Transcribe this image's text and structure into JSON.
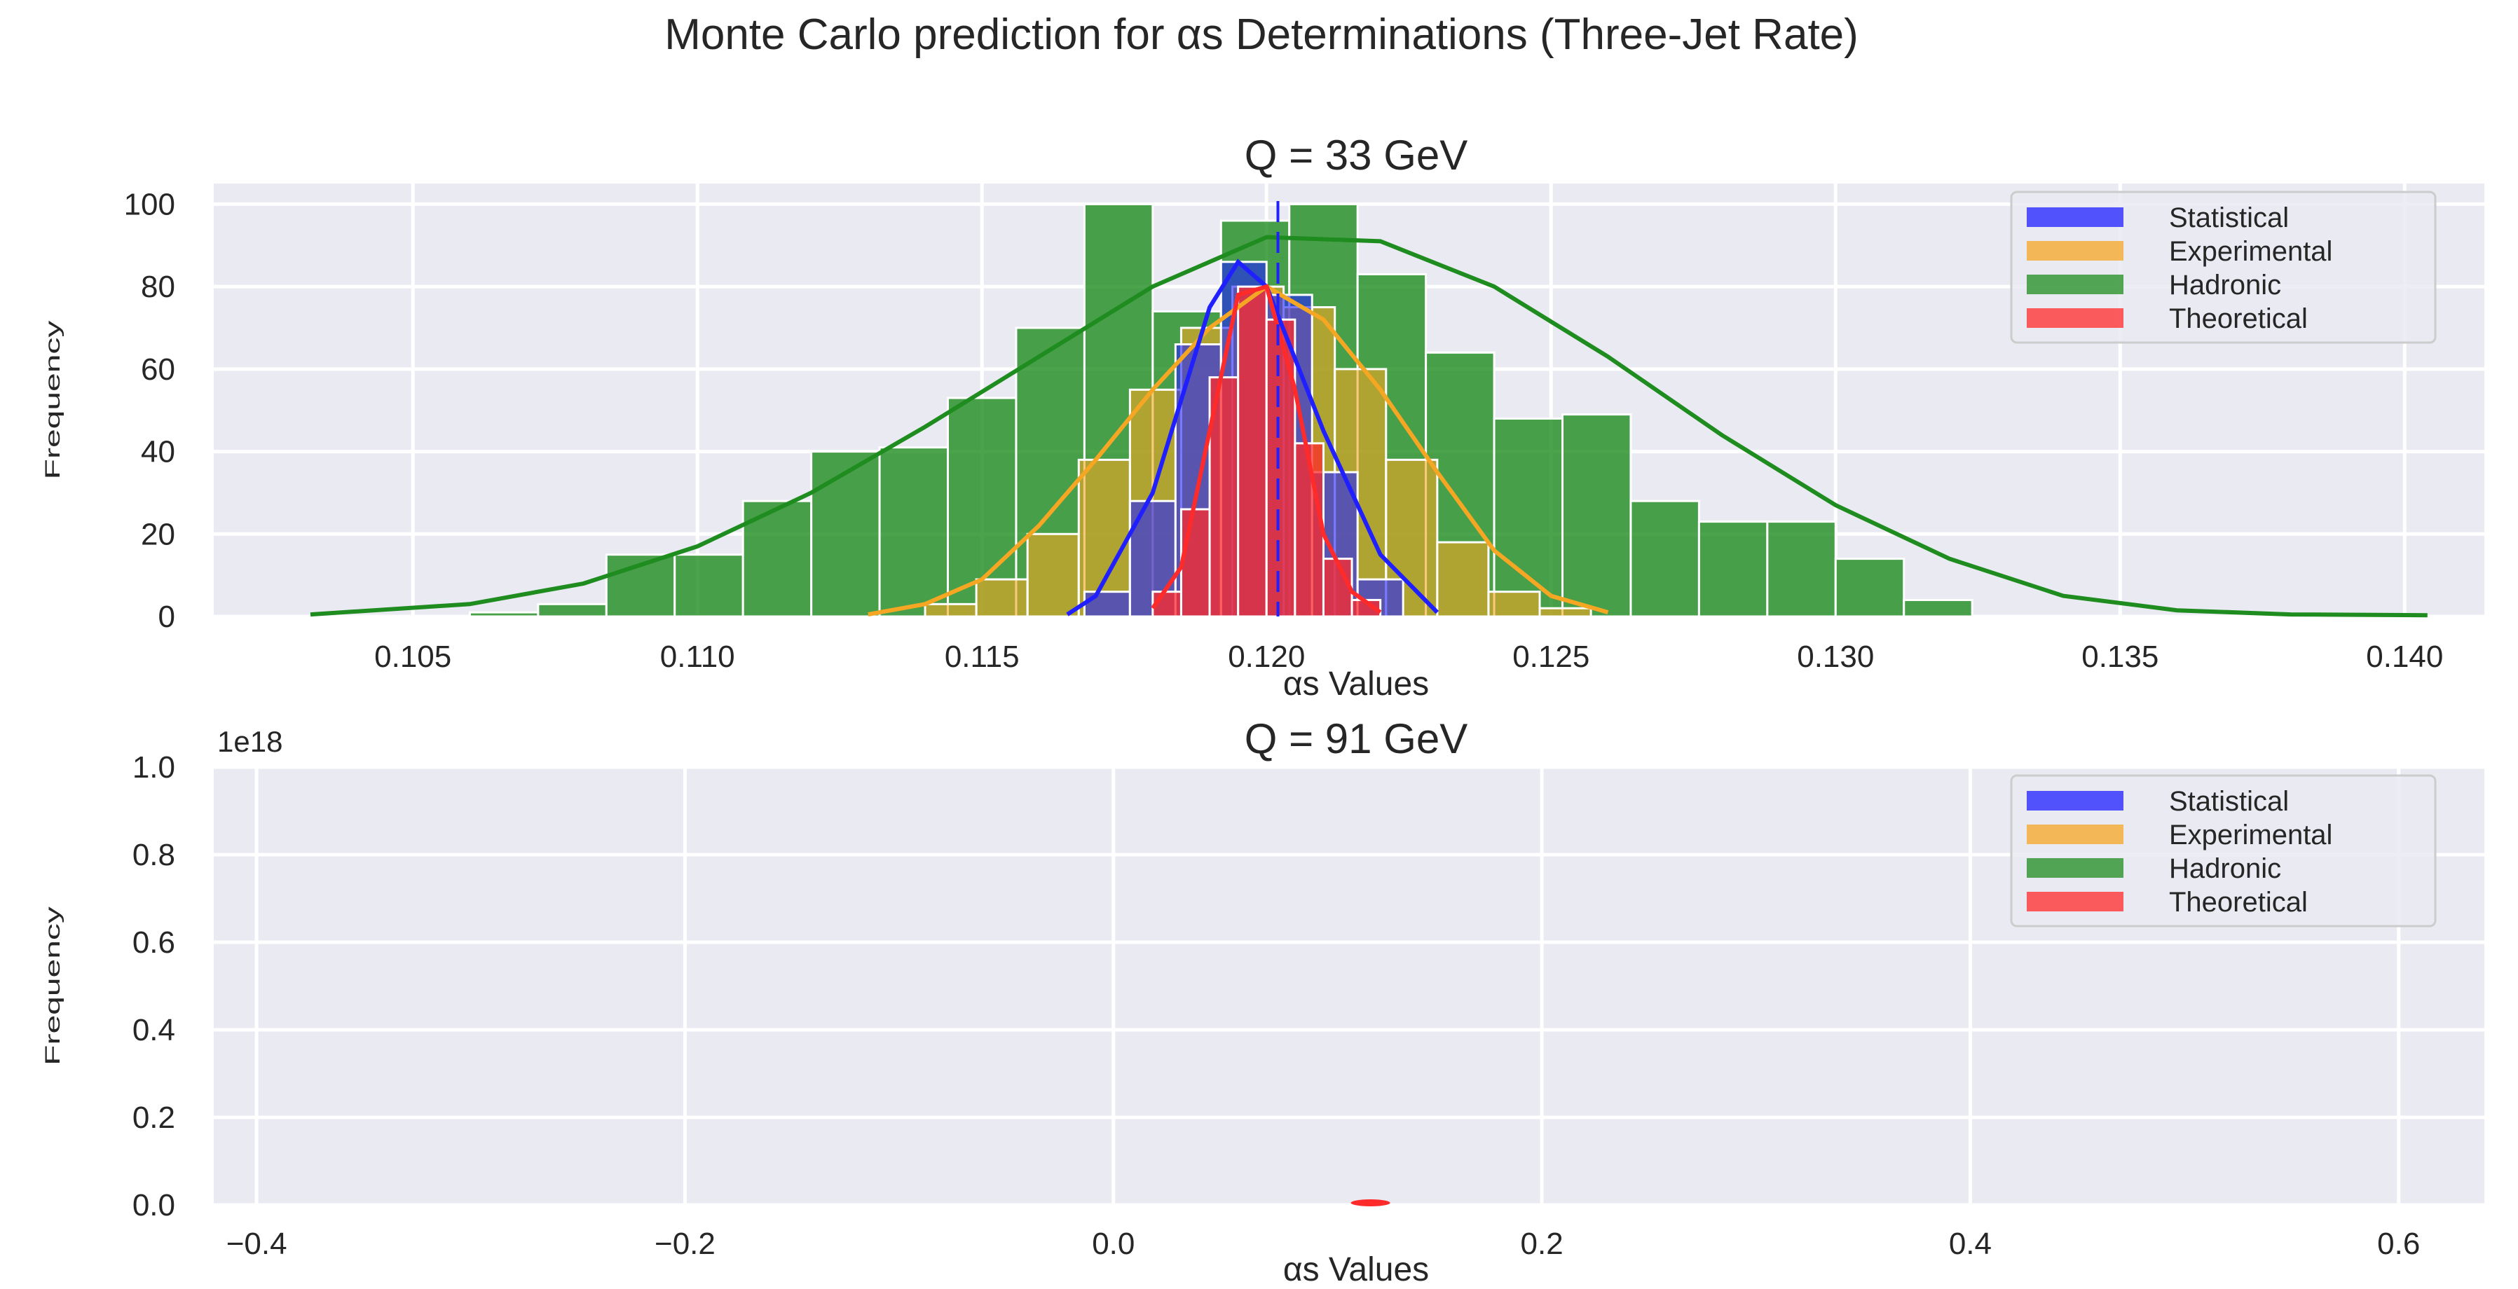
{
  "figure": {
    "suptitle": "Monte Carlo prediction for αs Determinations (Three-Jet Rate)"
  },
  "chart_data": [
    {
      "type": "bar",
      "title": "Q = 33 GeV",
      "xlabel": "αs Values",
      "ylabel": "Frequency",
      "xlim": [
        0.1015,
        0.1414
      ],
      "ylim": [
        0,
        105
      ],
      "xticks": [
        0.105,
        0.11,
        0.115,
        0.12,
        0.125,
        0.13,
        0.135,
        0.14
      ],
      "xtick_labels": [
        "0.105",
        "0.110",
        "0.115",
        "0.120",
        "0.125",
        "0.130",
        "0.135",
        "0.140"
      ],
      "yticks": [
        0,
        20,
        40,
        60,
        80,
        100
      ],
      "ytick_labels": [
        "0",
        "20",
        "40",
        "60",
        "80",
        "100"
      ],
      "grid": true,
      "legend_position": "top-right",
      "legend": [
        "Statistical",
        "Experimental",
        "Hadronic",
        "Theoretical"
      ],
      "colors": {
        "Statistical": "#1f1fff",
        "Experimental": "#f5a623",
        "Hadronic": "#1e8c1e",
        "Theoretical": "#ff2a2a"
      },
      "series": [
        {
          "name": "Hadronic",
          "kind": "histogram",
          "bin_edges": [
            0.106,
            0.1072,
            0.1084,
            0.1096,
            0.1108,
            0.112,
            0.1132,
            0.1144,
            0.1156,
            0.1168,
            0.118,
            0.1192,
            0.1204,
            0.1216,
            0.1228,
            0.124,
            0.1252,
            0.1264,
            0.1276,
            0.1288,
            0.13,
            0.1312,
            0.1324,
            0.1336
          ],
          "counts": [
            1,
            3,
            15,
            15,
            28,
            40,
            41,
            53,
            70,
            100,
            74,
            96,
            100,
            83,
            64,
            48,
            49,
            28,
            23,
            23,
            14,
            4,
            0
          ],
          "kde": {
            "x": [
              0.1032,
              0.106,
              0.108,
              0.11,
              0.112,
              0.114,
              0.116,
              0.118,
              0.12,
              0.122,
              0.124,
              0.126,
              0.128,
              0.13,
              0.132,
              0.134,
              0.136,
              0.138,
              0.1404
            ],
            "y": [
              0.5,
              3,
              8,
              17,
              30,
              46,
              63,
              80,
              92,
              91,
              80,
              63,
              44,
              27,
              14,
              5,
              1.5,
              0.5,
              0.3
            ]
          }
        },
        {
          "name": "Experimental",
          "kind": "histogram",
          "bin_edges": [
            0.114,
            0.1149,
            0.1158,
            0.1167,
            0.1176,
            0.1185,
            0.1194,
            0.1203,
            0.1212,
            0.1221,
            0.123,
            0.1239,
            0.1248,
            0.1257
          ],
          "counts": [
            3,
            9,
            20,
            38,
            55,
            70,
            80,
            75,
            60,
            38,
            18,
            6,
            2
          ],
          "kde": {
            "x": [
              0.113,
              0.114,
              0.115,
              0.116,
              0.117,
              0.118,
              0.119,
              0.12,
              0.121,
              0.122,
              0.123,
              0.124,
              0.125,
              0.126
            ],
            "y": [
              0.5,
              3,
              9,
              22,
              38,
              55,
              70,
              80,
              72,
              55,
              35,
              16,
              5,
              1
            ]
          }
        },
        {
          "name": "Statistical",
          "kind": "histogram",
          "bin_edges": [
            0.1168,
            0.1176,
            0.1184,
            0.1192,
            0.12,
            0.1208,
            0.1216,
            0.1224
          ],
          "counts": [
            6,
            28,
            66,
            86,
            78,
            35,
            9
          ],
          "kde": {
            "x": [
              0.1165,
              0.117,
              0.118,
              0.119,
              0.1195,
              0.12,
              0.121,
              0.122,
              0.123
            ],
            "y": [
              0.5,
              5,
              30,
              75,
              86,
              80,
              45,
              15,
              1
            ]
          }
        },
        {
          "name": "Theoretical",
          "kind": "histogram",
          "bin_edges": [
            0.118,
            0.1185,
            0.119,
            0.1195,
            0.12,
            0.1205,
            0.121,
            0.1215,
            0.122
          ],
          "counts": [
            6,
            26,
            58,
            80,
            72,
            42,
            14,
            4
          ],
          "kde": {
            "x": [
              0.118,
              0.1185,
              0.119,
              0.1195,
              0.12,
              0.1205,
              0.121,
              0.1215,
              0.122
            ],
            "y": [
              2,
              12,
              45,
              78,
              80,
              55,
              20,
              6,
              1
            ]
          }
        }
      ],
      "vline": {
        "x": 0.1202,
        "color": "#1f1fff"
      }
    },
    {
      "type": "bar",
      "title": "Q = 91 GeV",
      "xlabel": "αs Values",
      "ylabel": "Frequency",
      "y_offset_text": "1e18",
      "xlim": [
        -0.42,
        0.64
      ],
      "ylim": [
        0.0,
        1.0
      ],
      "xticks": [
        -0.4,
        -0.2,
        0.0,
        0.2,
        0.4,
        0.6
      ],
      "xtick_labels": [
        "−0.4",
        "−0.2",
        "0.0",
        "0.2",
        "0.4",
        "0.6"
      ],
      "yticks": [
        0.0,
        0.2,
        0.4,
        0.6,
        0.8,
        1.0
      ],
      "ytick_labels": [
        "0.0",
        "0.2",
        "0.4",
        "0.6",
        "0.8",
        "1.0"
      ],
      "grid": true,
      "legend_position": "top-right",
      "legend": [
        "Statistical",
        "Experimental",
        "Hadronic",
        "Theoretical"
      ],
      "colors": {
        "Statistical": "#1f1fff",
        "Experimental": "#f5a623",
        "Hadronic": "#1e8c1e",
        "Theoretical": "#ff2a2a"
      },
      "series": [
        {
          "name": "Theoretical",
          "kind": "spike",
          "x": 0.12,
          "y": 0.002
        }
      ]
    }
  ]
}
